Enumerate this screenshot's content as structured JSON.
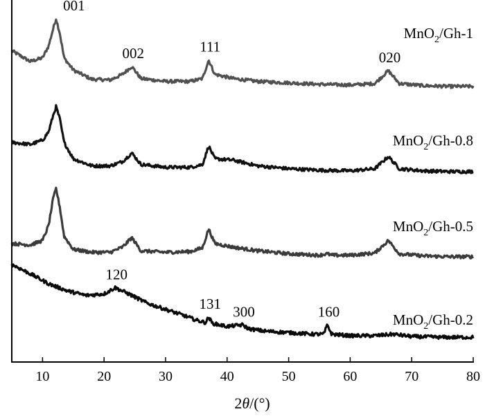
{
  "chart_data": {
    "type": "line",
    "xlabel_parts": [
      "2",
      "θ",
      "/(°)"
    ],
    "xlim": [
      5,
      80
    ],
    "xticks": [
      10,
      20,
      30,
      40,
      50,
      60,
      70,
      80
    ],
    "y_ticks_shown": false,
    "grid": false,
    "series": [
      {
        "name": "MnO2/Gh-1",
        "name_parts": [
          "MnO",
          "2",
          "/Gh-1"
        ],
        "color": "#505050",
        "peak_labels": [
          {
            "text": "001",
            "x": 12.2
          },
          {
            "text": "002",
            "x": 24.5
          },
          {
            "text": "111",
            "x": 37.0
          },
          {
            "text": "020",
            "x": 66.2
          }
        ],
        "points": [
          [
            5,
            0.55
          ],
          [
            8,
            0.4
          ],
          [
            10,
            0.45
          ],
          [
            11,
            0.62
          ],
          [
            11.7,
            0.85
          ],
          [
            12.2,
            1.0
          ],
          [
            12.8,
            0.8
          ],
          [
            13.5,
            0.45
          ],
          [
            15,
            0.28
          ],
          [
            18,
            0.15
          ],
          [
            21,
            0.14
          ],
          [
            23,
            0.22
          ],
          [
            24.5,
            0.33
          ],
          [
            26,
            0.16
          ],
          [
            30,
            0.12
          ],
          [
            34,
            0.12
          ],
          [
            36,
            0.16
          ],
          [
            37.0,
            0.42
          ],
          [
            38,
            0.22
          ],
          [
            41,
            0.16
          ],
          [
            45,
            0.12
          ],
          [
            50,
            0.1
          ],
          [
            55,
            0.08
          ],
          [
            60,
            0.07
          ],
          [
            64,
            0.09
          ],
          [
            66.2,
            0.27
          ],
          [
            68,
            0.09
          ],
          [
            72,
            0.06
          ],
          [
            76,
            0.05
          ],
          [
            80,
            0.05
          ]
        ]
      },
      {
        "name": "MnO2/Gh-0.8",
        "name_parts": [
          "MnO",
          "2",
          "/Gh-0.8"
        ],
        "color": "#101010",
        "peak_labels": [],
        "points": [
          [
            5,
            0.45
          ],
          [
            8,
            0.42
          ],
          [
            10,
            0.48
          ],
          [
            11,
            0.6
          ],
          [
            11.7,
            0.82
          ],
          [
            12.2,
            0.95
          ],
          [
            12.8,
            0.78
          ],
          [
            13.5,
            0.45
          ],
          [
            15,
            0.22
          ],
          [
            18,
            0.12
          ],
          [
            21,
            0.12
          ],
          [
            23,
            0.18
          ],
          [
            24.5,
            0.3
          ],
          [
            26,
            0.14
          ],
          [
            30,
            0.1
          ],
          [
            34,
            0.1
          ],
          [
            36,
            0.14
          ],
          [
            37.0,
            0.4
          ],
          [
            38,
            0.22
          ],
          [
            41,
            0.2
          ],
          [
            45,
            0.12
          ],
          [
            50,
            0.08
          ],
          [
            55,
            0.06
          ],
          [
            60,
            0.05
          ],
          [
            64,
            0.08
          ],
          [
            66.2,
            0.25
          ],
          [
            68,
            0.08
          ],
          [
            72,
            0.05
          ],
          [
            76,
            0.04
          ],
          [
            80,
            0.04
          ]
        ]
      },
      {
        "name": "MnO2/Gh-0.5",
        "name_parts": [
          "MnO",
          "2",
          "/Gh-0.5"
        ],
        "color": "#3a3a3a",
        "peak_labels": [],
        "points": [
          [
            5,
            0.2
          ],
          [
            8,
            0.18
          ],
          [
            10,
            0.24
          ],
          [
            11,
            0.45
          ],
          [
            11.7,
            0.8
          ],
          [
            12.2,
            0.95
          ],
          [
            12.8,
            0.7
          ],
          [
            13.5,
            0.3
          ],
          [
            15,
            0.12
          ],
          [
            18,
            0.08
          ],
          [
            21,
            0.08
          ],
          [
            23,
            0.15
          ],
          [
            24.5,
            0.28
          ],
          [
            26,
            0.1
          ],
          [
            30,
            0.08
          ],
          [
            34,
            0.09
          ],
          [
            36,
            0.14
          ],
          [
            37.0,
            0.4
          ],
          [
            38,
            0.2
          ],
          [
            41,
            0.15
          ],
          [
            45,
            0.1
          ],
          [
            50,
            0.06
          ],
          [
            55,
            0.04
          ],
          [
            56.2,
            0.06
          ],
          [
            57,
            0.04
          ],
          [
            60,
            0.04
          ],
          [
            64,
            0.07
          ],
          [
            66.2,
            0.24
          ],
          [
            68,
            0.06
          ],
          [
            72,
            0.03
          ],
          [
            76,
            0.02
          ],
          [
            80,
            0.02
          ]
        ]
      },
      {
        "name": "MnO2/Gh-0.2",
        "name_parts": [
          "MnO",
          "2",
          "/Gh-0.2"
        ],
        "color": "#0a0a0a",
        "peak_labels": [
          {
            "text": "120",
            "x": 21.8
          },
          {
            "text": "131",
            "x": 37.0
          },
          {
            "text": "300",
            "x": 42.5
          },
          {
            "text": "160",
            "x": 56.3
          }
        ],
        "points": [
          [
            5,
            1.0
          ],
          [
            8,
            0.88
          ],
          [
            11,
            0.75
          ],
          [
            14,
            0.66
          ],
          [
            17,
            0.6
          ],
          [
            20,
            0.62
          ],
          [
            21.8,
            0.7
          ],
          [
            24,
            0.62
          ],
          [
            27,
            0.5
          ],
          [
            30,
            0.42
          ],
          [
            33,
            0.34
          ],
          [
            35,
            0.28
          ],
          [
            36.5,
            0.25
          ],
          [
            37.0,
            0.32
          ],
          [
            37.6,
            0.24
          ],
          [
            40,
            0.2
          ],
          [
            42.5,
            0.22
          ],
          [
            43.5,
            0.17
          ],
          [
            46,
            0.14
          ],
          [
            50,
            0.12
          ],
          [
            54,
            0.1
          ],
          [
            55.7,
            0.1
          ],
          [
            56.3,
            0.22
          ],
          [
            57,
            0.1
          ],
          [
            60,
            0.08
          ],
          [
            64,
            0.08
          ],
          [
            67,
            0.1
          ],
          [
            70,
            0.07
          ],
          [
            75,
            0.06
          ],
          [
            80,
            0.06
          ]
        ]
      }
    ]
  }
}
